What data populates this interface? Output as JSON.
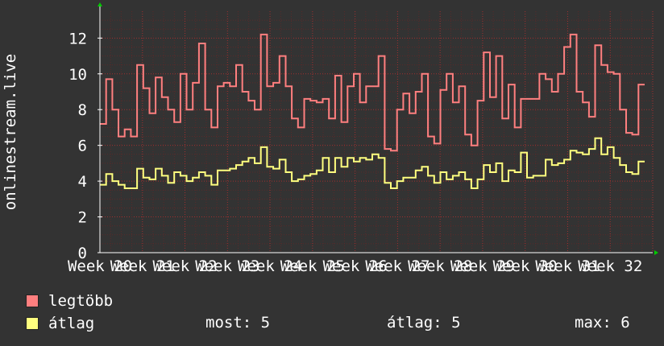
{
  "chart_data": {
    "type": "line",
    "ylabel": "onlinestream.live",
    "ylim": [
      0,
      13.5
    ],
    "yticks": [
      0,
      2,
      4,
      6,
      8,
      10,
      12
    ],
    "xticks": [
      "Week 20",
      "Week 21",
      "Week 22",
      "Week 23",
      "Week 24",
      "Week 25",
      "Week 26",
      "Week 27",
      "Week 28",
      "Week 29",
      "Week 30",
      "Week 31",
      "Week 32"
    ],
    "grid": true,
    "colors": {
      "legtobb": "#ff7f7f",
      "atlag": "#ffff7f",
      "grid": "#8c2a2a",
      "axis": "#ffffff",
      "arrow": "#00cc00"
    },
    "series": [
      {
        "name": "legtöbb",
        "color": "#ff7f7f",
        "values": [
          7.2,
          9.7,
          8.0,
          6.5,
          6.9,
          6.5,
          10.5,
          9.2,
          7.8,
          9.8,
          8.7,
          8.0,
          7.3,
          10.0,
          8.0,
          9.5,
          11.7,
          8.0,
          7.0,
          9.3,
          9.5,
          9.3,
          10.5,
          9.0,
          8.5,
          8.0,
          12.2,
          9.3,
          9.5,
          11.0,
          9.3,
          7.5,
          7.0,
          8.6,
          8.5,
          8.4,
          8.6,
          7.5,
          9.9,
          7.3,
          9.3,
          10.0,
          8.4,
          9.3,
          9.3,
          11.0,
          5.8,
          5.7,
          8.0,
          8.9,
          7.8,
          9.0,
          10.0,
          6.5,
          6.1,
          9.1,
          10.0,
          8.4,
          9.3,
          6.6,
          6.0,
          8.5,
          11.2,
          8.7,
          11.0,
          7.5,
          9.4,
          7.0,
          8.6,
          8.6,
          8.6,
          10.0,
          9.7,
          9.0,
          10.0,
          11.5,
          12.2,
          9.0,
          8.4,
          7.6,
          11.6,
          10.5,
          10.1,
          10.0,
          8.0,
          6.7,
          6.6,
          9.4
        ]
      },
      {
        "name": "átlag",
        "color": "#ffff7f",
        "values": [
          3.8,
          4.4,
          4.0,
          3.8,
          3.6,
          3.6,
          4.7,
          4.2,
          4.1,
          4.7,
          4.3,
          3.9,
          4.5,
          4.3,
          4.0,
          4.2,
          4.5,
          4.3,
          3.8,
          4.6,
          4.6,
          4.7,
          4.9,
          5.1,
          5.3,
          5.0,
          5.9,
          4.8,
          4.7,
          5.2,
          4.5,
          4.0,
          4.1,
          4.3,
          4.4,
          4.6,
          5.3,
          4.5,
          5.3,
          4.8,
          5.3,
          5.1,
          5.3,
          5.2,
          5.5,
          5.3,
          3.9,
          3.6,
          4.0,
          4.2,
          4.2,
          4.6,
          4.8,
          4.3,
          3.9,
          4.5,
          4.1,
          4.3,
          4.5,
          4.1,
          3.6,
          4.1,
          4.9,
          4.5,
          5.0,
          4.0,
          4.6,
          4.5,
          5.6,
          4.2,
          4.3,
          4.3,
          5.2,
          4.9,
          5.0,
          5.2,
          5.7,
          5.6,
          5.5,
          5.8,
          6.4,
          5.5,
          5.9,
          5.3,
          4.9,
          4.5,
          4.4,
          5.1
        ]
      }
    ]
  },
  "legend": [
    {
      "label": "legtöbb",
      "color": "#ff7f7f"
    },
    {
      "label": "átlag",
      "color": "#ffff7f"
    }
  ],
  "stats": {
    "now": "most: 5",
    "average": "átlag: 5",
    "max": "max: 6"
  }
}
